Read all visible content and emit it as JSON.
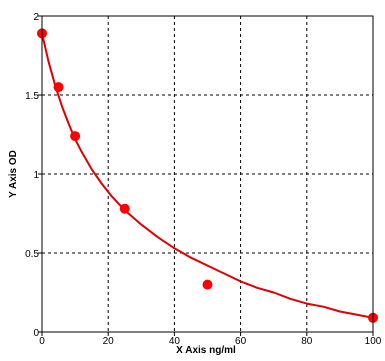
{
  "chart_data": {
    "type": "scatter",
    "title": "",
    "xlabel": "X Axis ng/ml",
    "ylabel": "Y Axis OD",
    "xlim": [
      0,
      100
    ],
    "ylim": [
      0,
      2
    ],
    "x_ticks": [
      0,
      20,
      40,
      60,
      80,
      100
    ],
    "y_ticks": [
      0,
      0.5,
      1,
      1.5,
      2
    ],
    "x_tick_labels": [
      "0",
      "20",
      "40",
      "60",
      "80",
      "100"
    ],
    "y_tick_labels": [
      "0",
      "0.5",
      "1",
      "1.5",
      "2"
    ],
    "grid": true,
    "legend": "none",
    "colors": {
      "points": "#ff0000",
      "curve": "#e00000",
      "grid": "#000000",
      "axes": "#000000"
    },
    "series": [
      {
        "values": [
          {
            "x": 0,
            "y": 1.89
          },
          {
            "x": 5,
            "y": 1.55
          },
          {
            "x": 10,
            "y": 1.24
          },
          {
            "x": 25,
            "y": 0.78
          },
          {
            "x": 50,
            "y": 0.3
          },
          {
            "x": 100,
            "y": 0.09
          }
        ]
      }
    ],
    "fit_curve": {
      "x": [
        0,
        2,
        4,
        6,
        8,
        10,
        12,
        15,
        18,
        21,
        25,
        30,
        35,
        40,
        45,
        50,
        55,
        60,
        65,
        70,
        75,
        80,
        85,
        90,
        95,
        100
      ],
      "y": [
        1.89,
        1.71,
        1.56,
        1.43,
        1.32,
        1.22,
        1.14,
        1.03,
        0.94,
        0.86,
        0.77,
        0.68,
        0.6,
        0.53,
        0.47,
        0.42,
        0.37,
        0.32,
        0.28,
        0.25,
        0.21,
        0.18,
        0.16,
        0.13,
        0.11,
        0.09
      ]
    }
  }
}
